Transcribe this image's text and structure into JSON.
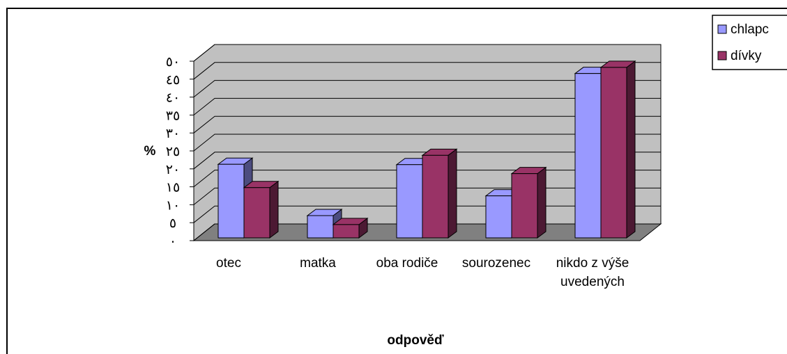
{
  "chart_data": {
    "type": "bar3d",
    "categories": [
      "otec",
      "matka",
      "oba rodiče",
      "sourozenec",
      "nikdo z výše uvedených"
    ],
    "series": [
      {
        "name": "chlapc",
        "color": "#9999ff",
        "values": [
          20.5,
          6.2,
          20.4,
          11.7,
          45.8
        ]
      },
      {
        "name": "dívky",
        "color": "#993366",
        "values": [
          14,
          3.7,
          23,
          17.9,
          47.5
        ]
      }
    ],
    "ylabel": "%",
    "xlabel": "odpověď",
    "ylim": [
      0,
      50
    ],
    "yticks": [
      {
        "value": 0,
        "label": "٠"
      },
      {
        "value": 5,
        "label": "٥"
      },
      {
        "value": 10,
        "label": "١٠"
      },
      {
        "value": 15,
        "label": "١٥"
      },
      {
        "value": 20,
        "label": "٢٠"
      },
      {
        "value": 25,
        "label": "٢٥"
      },
      {
        "value": 30,
        "label": "٣٠"
      },
      {
        "value": 35,
        "label": "٣٥"
      },
      {
        "value": 40,
        "label": "٤٠"
      },
      {
        "value": 45,
        "label": "٤٥"
      },
      {
        "value": 50,
        "label": "٥٠"
      }
    ],
    "grid": true,
    "legend": "top-right"
  }
}
